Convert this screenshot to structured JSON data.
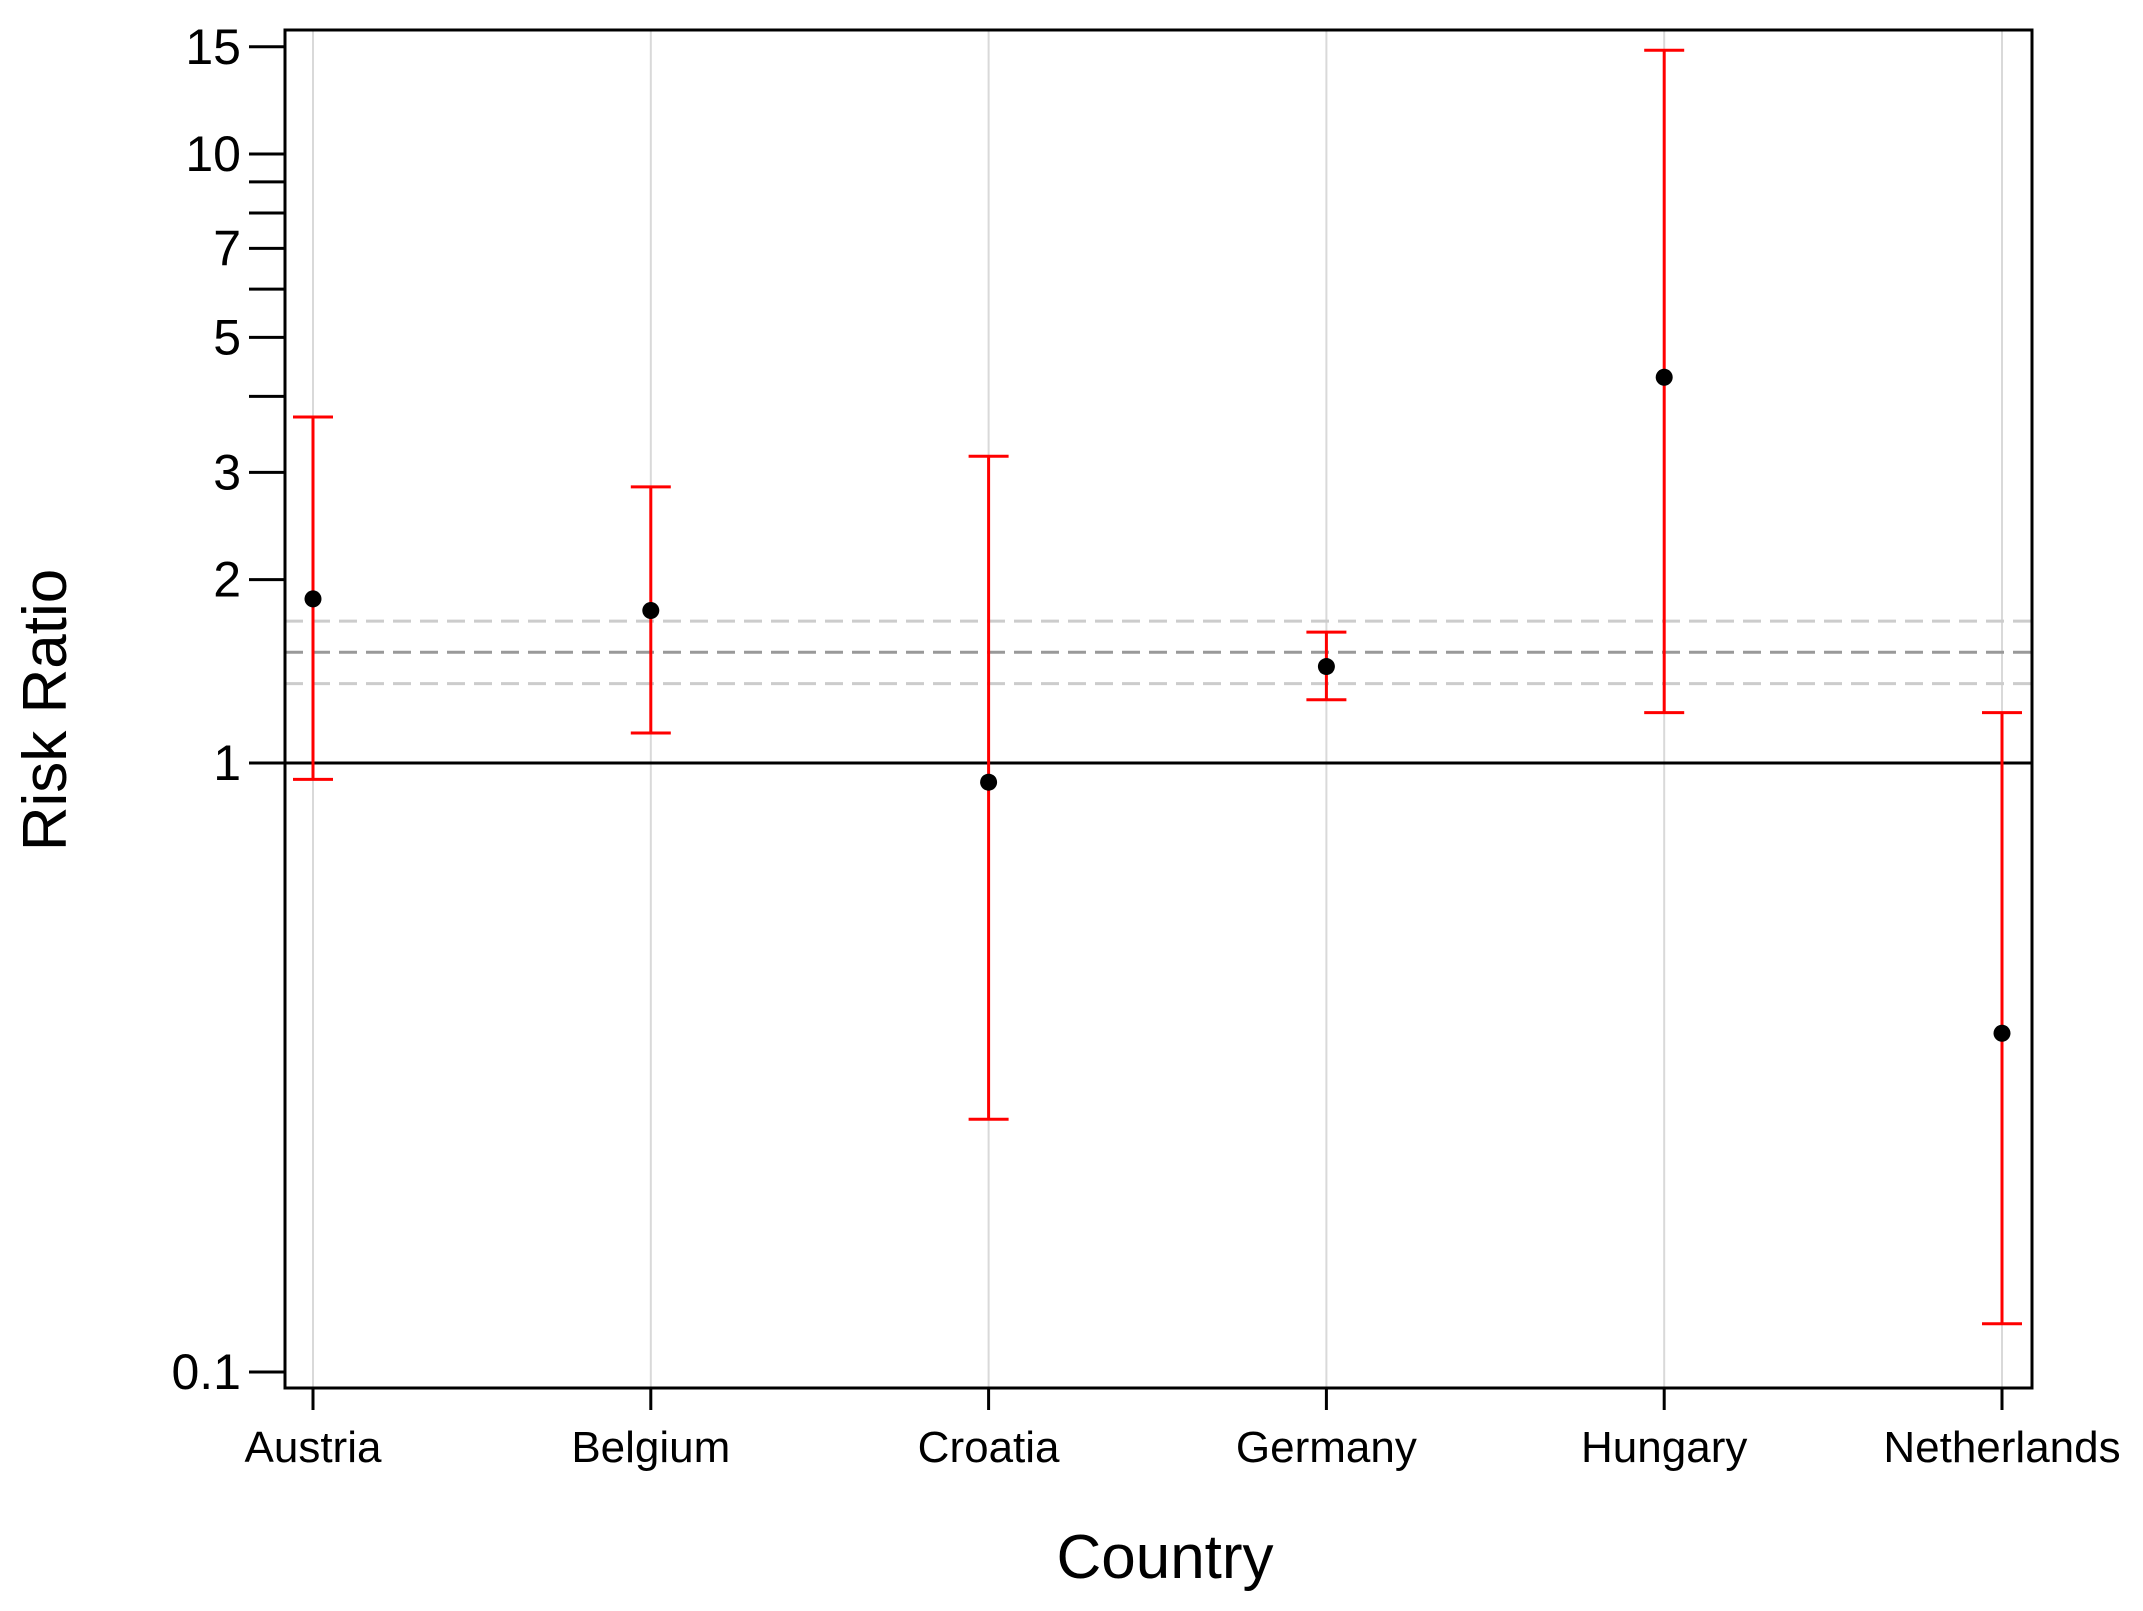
{
  "chart_data": {
    "type": "scatter",
    "subtype": "error-bar",
    "title": "",
    "xlabel": "Country",
    "ylabel": "Risk Ratio",
    "y_scale": "log",
    "ylim": [
      0.092,
      17
    ],
    "y_ticks": [
      {
        "value": 0.1,
        "label": "0.1"
      },
      {
        "value": 1,
        "label": "1"
      },
      {
        "value": 2,
        "label": "2"
      },
      {
        "value": 3,
        "label": "3"
      },
      {
        "value": 5,
        "label": "5"
      },
      {
        "value": 7,
        "label": "7"
      },
      {
        "value": 10,
        "label": "10"
      },
      {
        "value": 15,
        "label": "15"
      }
    ],
    "y_minor_ticks": [
      4,
      6,
      8,
      9
    ],
    "categories": [
      "Austria",
      "Belgium",
      "Croatia",
      "Germany",
      "Hungary",
      "Netherlands"
    ],
    "series": [
      {
        "estimates": [
          1.86,
          1.78,
          0.93,
          1.44,
          4.3,
          0.36
        ],
        "lower": [
          0.94,
          1.12,
          0.26,
          1.27,
          1.21,
          0.12
        ],
        "upper": [
          3.7,
          2.84,
          3.19,
          1.64,
          14.8,
          1.21
        ]
      }
    ],
    "reference_line": {
      "value": 1,
      "style": "solid"
    },
    "pooled_estimate": {
      "value": 1.52,
      "lower": 1.35,
      "upper": 1.71,
      "style": "dashed"
    },
    "grid": {
      "vertical": true,
      "horizontal": false
    },
    "colors": {
      "error_bar": "#ff0000",
      "point": "#000000",
      "gridline": "#d9d9d9",
      "pooled_line": "#999999",
      "pooled_ci_line": "#cccccc",
      "reference_line": "#000000",
      "axis": "#000000"
    }
  }
}
